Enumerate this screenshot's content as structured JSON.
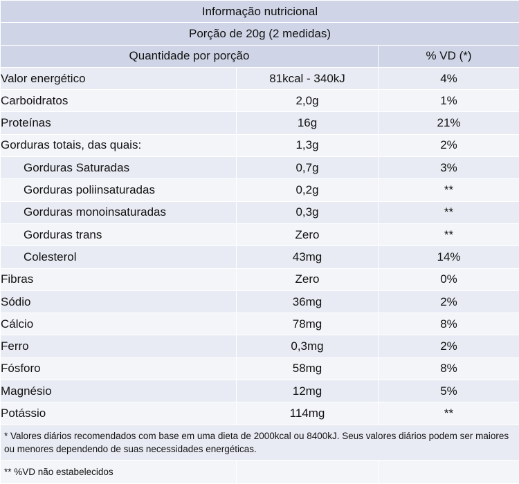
{
  "title": "Informação nutricional",
  "portion": "Porção de 20g (2 medidas)",
  "columns": {
    "quantity": "Quantidade por porção",
    "vd": "% VD (*)"
  },
  "rows": [
    {
      "label": "Valor energético",
      "amount": "81kcal - 340kJ",
      "vd": "4%"
    },
    {
      "label": "Carboidratos",
      "amount": "2,0g",
      "vd": "1%"
    },
    {
      "label": "Proteínas",
      "amount": "16g",
      "vd": "21%"
    },
    {
      "label": "Gorduras totais, das quais:",
      "amount": "1,3g",
      "vd": "2%"
    },
    {
      "label": "Gorduras Saturadas",
      "amount": "0,7g",
      "vd": "3%"
    },
    {
      "label": "Gorduras poliinsaturadas",
      "amount": "0,2g",
      "vd": "**"
    },
    {
      "label": "Gorduras monoinsaturadas",
      "amount": "0,3g",
      "vd": "**"
    },
    {
      "label": "Gorduras trans",
      "amount": "Zero",
      "vd": "**"
    },
    {
      "label": "Colesterol",
      "amount": "43mg",
      "vd": "14%"
    },
    {
      "label": "Fibras",
      "amount": "Zero",
      "vd": "0%"
    },
    {
      "label": "Sódio",
      "amount": "36mg",
      "vd": "2%"
    },
    {
      "label": "Cálcio",
      "amount": "78mg",
      "vd": "8%"
    },
    {
      "label": "Ferro",
      "amount": "0,3mg",
      "vd": "2%"
    },
    {
      "label": "Fósforo",
      "amount": "58mg",
      "vd": "8%"
    },
    {
      "label": "Magnésio",
      "amount": "12mg",
      "vd": "5%"
    },
    {
      "label": "Potássio",
      "amount": "114mg",
      "vd": "**"
    }
  ],
  "footnote1": "* Valores diários recomendados com base em uma dieta de 2000kcal ou 8400kJ. Seus valores diários podem ser maiores ou menores dependendo de suas necessidades energéticas.",
  "footnote2": "** %VD não estabelecidos"
}
